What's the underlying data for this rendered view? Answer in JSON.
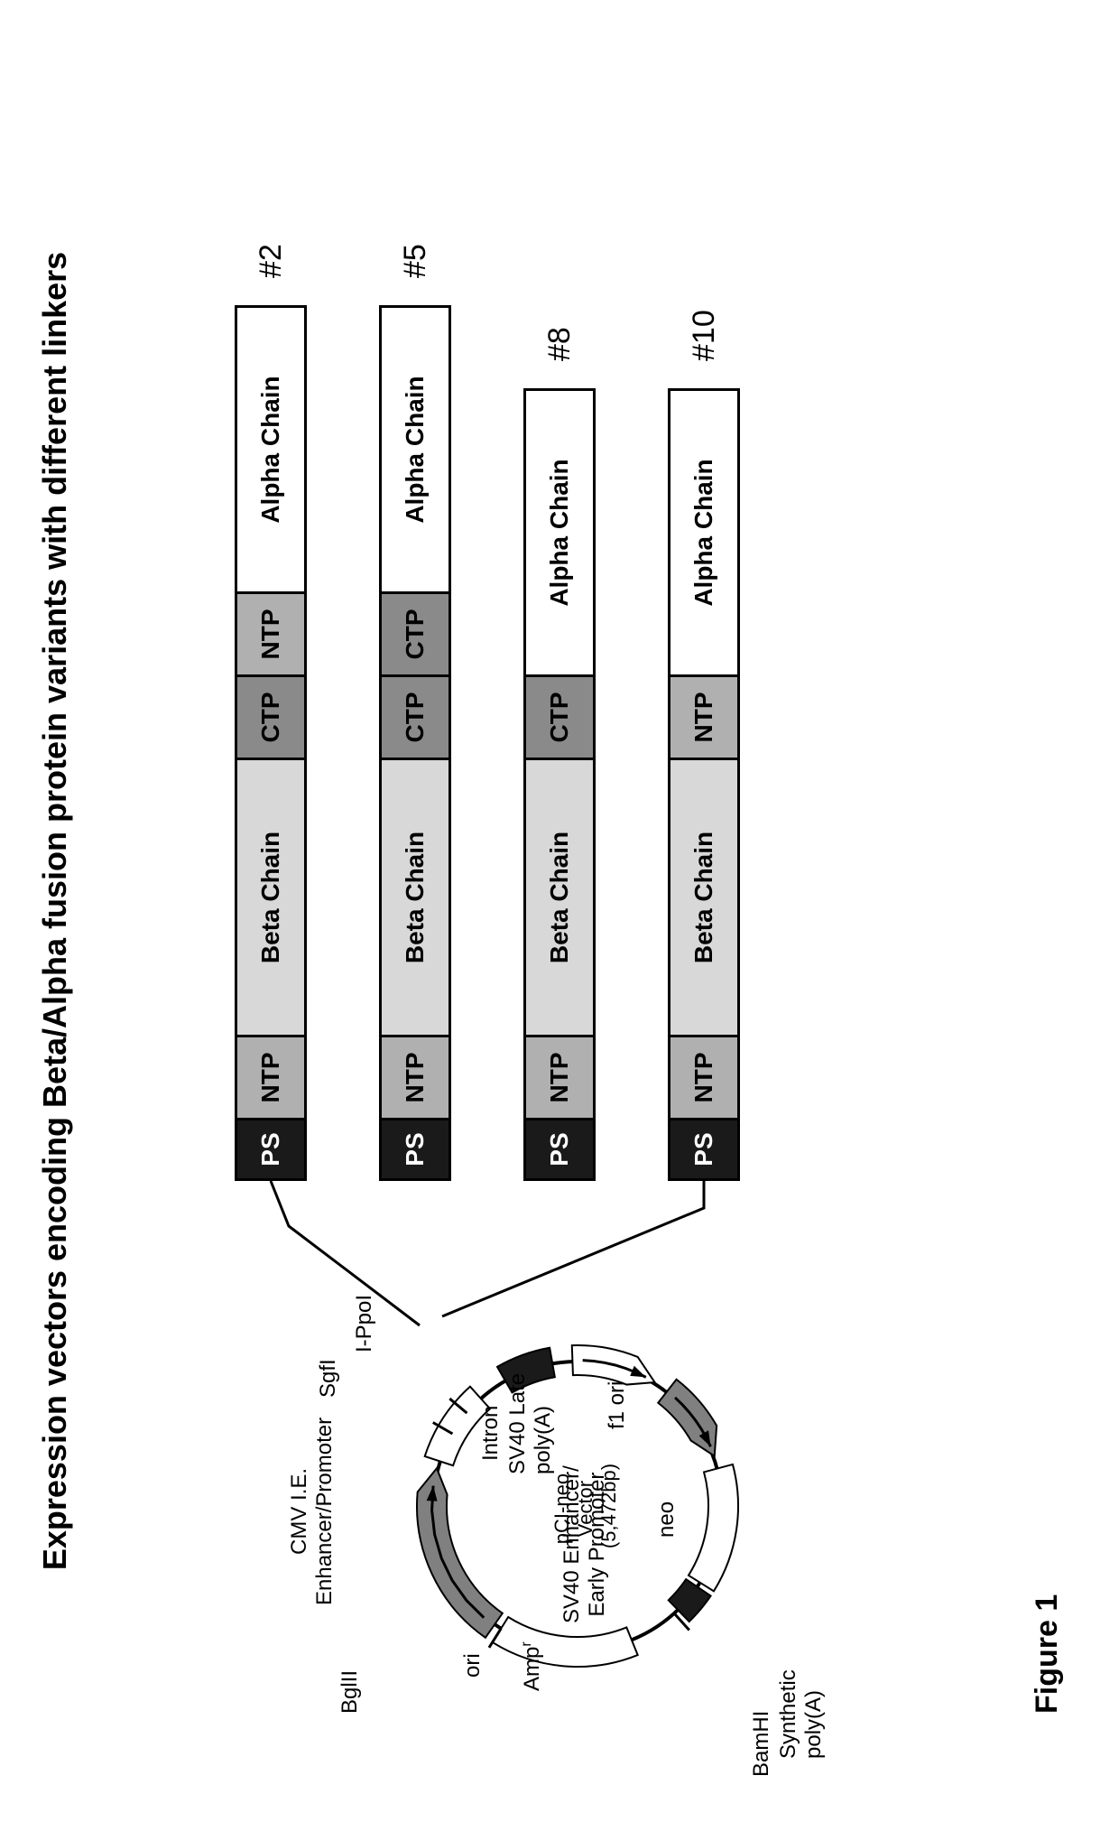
{
  "title": "Expression vectors encoding Beta/Alpha fusion protein variants with different linkers",
  "figure_caption": "Figure 1",
  "colors": {
    "ps_fill": "#1a1a1a",
    "ps_text": "#ffffff",
    "ntp_fill": "#b0b0b0",
    "ctp_fill": "#8a8a8a",
    "beta_fill": "#d8d8d8",
    "alpha_fill": "#ffffff",
    "stroke": "#000000",
    "plasmid_gray": "#808080",
    "plasmid_dark": "#1a1a1a",
    "plasmid_white": "#ffffff"
  },
  "segment_labels": {
    "ps": "PS",
    "ntp": "NTP",
    "ctp": "CTP",
    "beta": "Beta Chain",
    "alpha": "Alpha Chain"
  },
  "segment_widths": {
    "ps": 70,
    "ntp": 95,
    "ctp": 95,
    "beta": 310,
    "alpha_long": 320,
    "alpha_short": 320
  },
  "constructs": [
    {
      "id": "#2",
      "segs": [
        "ps",
        "ntp",
        "beta",
        "ctp",
        "ntp",
        "alpha_long"
      ]
    },
    {
      "id": "#5",
      "segs": [
        "ps",
        "ntp",
        "beta",
        "ctp",
        "ctp",
        "alpha_long"
      ]
    },
    {
      "id": "#8",
      "segs": [
        "ps",
        "ntp",
        "beta",
        "ctp",
        "alpha_short"
      ]
    },
    {
      "id": "#10",
      "segs": [
        "ps",
        "ntp",
        "beta",
        "ntp",
        "alpha_short"
      ]
    }
  ],
  "plasmid": {
    "center_lines": [
      "pCI-neo",
      "Vector",
      "(5,472bp)"
    ],
    "labels": {
      "bglii": "BglII",
      "cmv": "CMV I.E.\nEnhancer/Promoter",
      "sgfi": "SgfI",
      "ippoi": "I-PpoI",
      "intron": "Intron",
      "sv40late": "SV40 Late\npoly(A)",
      "f1ori": "f1 ori",
      "sv40enh": "SV40 Enhancer/\nEarly Promoter",
      "neo": "neo",
      "synpolyA": "Synthetic\npoly(A)",
      "bamhi": "BamHI",
      "ampr": "Amp",
      "ori": "ori"
    }
  }
}
